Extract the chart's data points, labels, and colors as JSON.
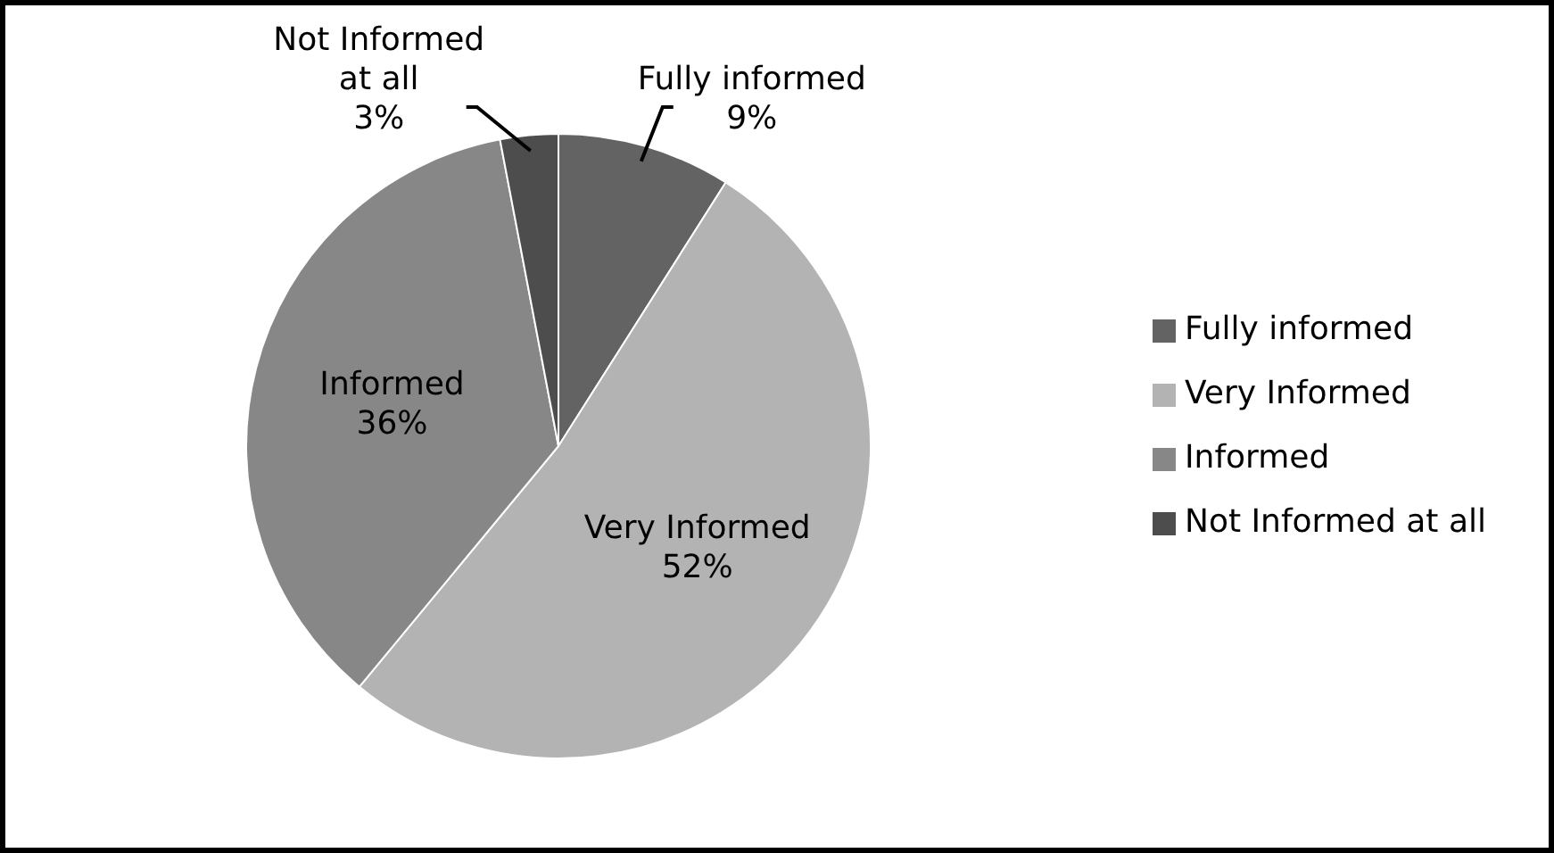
{
  "chart_data": {
    "type": "pie",
    "categories": [
      "Fully informed",
      "Very Informed",
      "Informed",
      "Not Informed at all"
    ],
    "values": [
      9,
      52,
      36,
      3
    ],
    "value_labels": [
      "9%",
      "52%",
      "36%",
      "3%"
    ],
    "colors": [
      "#636363",
      "#b3b3b3",
      "#878787",
      "#4d4d4d"
    ],
    "legend": "right"
  }
}
